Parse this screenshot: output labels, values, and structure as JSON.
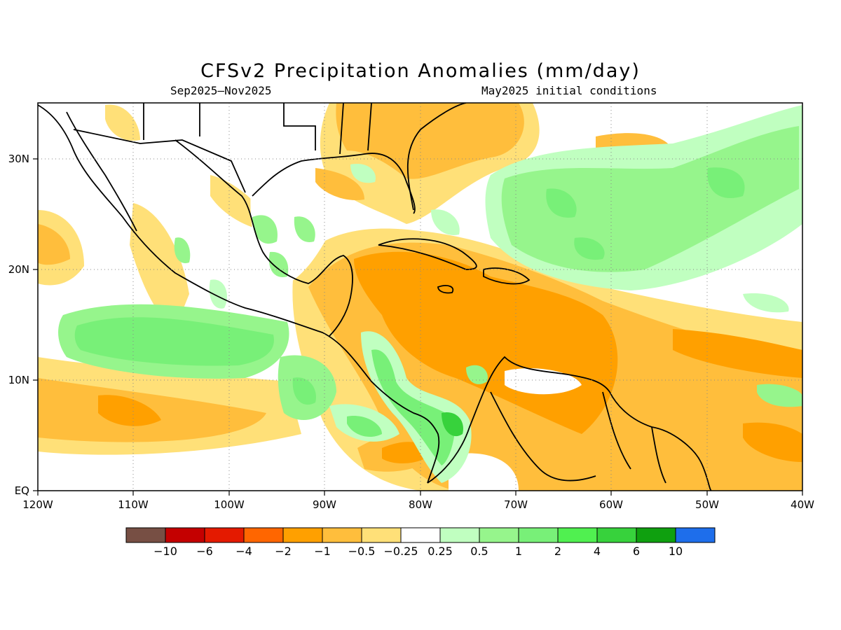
{
  "title": "CFSv2 Precipitation Anomalies (mm/day)",
  "period": "Sep2025–Nov2025",
  "initial": "May2025 initial conditions",
  "lat_labels": [
    "30N",
    "20N",
    "10N",
    "EQ"
  ],
  "lon_labels": [
    "120W",
    "110W",
    "100W",
    "90W",
    "80W",
    "70W",
    "60W",
    "50W",
    "40W"
  ],
  "colorbar": {
    "colors": [
      "#774f44",
      "#c40000",
      "#e41a00",
      "#ff6600",
      "#ffa000",
      "#ffbe3c",
      "#ffe078",
      "#ffffff",
      "#c0ffc0",
      "#96f58c",
      "#78f078",
      "#50f050",
      "#37d23c",
      "#0fa00f",
      "#1e6eeb"
    ],
    "labels": [
      "−10",
      "−6",
      "−4",
      "−2",
      "−1",
      "−0.5",
      "−0.25",
      "0.25",
      "0.5",
      "1",
      "2",
      "4",
      "6",
      "10"
    ]
  }
}
